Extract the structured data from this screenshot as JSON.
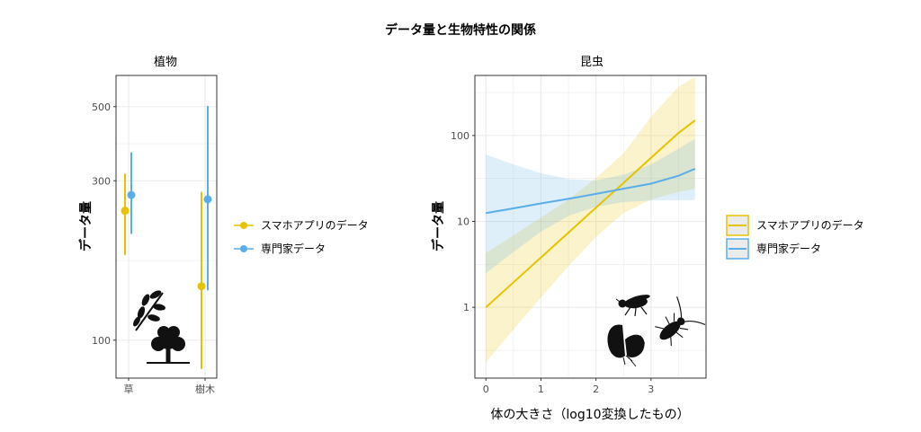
{
  "title": "データ量と生物特性の関係",
  "colors": {
    "smartphone": "#E6C300",
    "expert": "#5AAEE8",
    "grid": "#EBEBEB",
    "panel_border": "#333333",
    "silhouette": "#111111"
  },
  "icons": {
    "plants": [
      "leaf-sprig-icon",
      "tree-icon"
    ],
    "insects": [
      "fly-icon",
      "longhorn-beetle-icon",
      "butterfly-icon"
    ]
  },
  "chart_data": [
    {
      "type": "scatter",
      "panel": "植物",
      "ylabel": "データ量",
      "yscale": "log",
      "ylim": [
        77,
        620
      ],
      "yticks": [
        100,
        300,
        500
      ],
      "categories": [
        "草",
        "樹木"
      ],
      "grid": true,
      "legend_position": "right",
      "series": [
        {
          "name": "スマホアプリのデータ",
          "key": "smartphone",
          "values": [
            244,
            145
          ],
          "lower": [
            180,
            82
          ],
          "upper": [
            315,
            278
          ]
        },
        {
          "name": "専門家データ",
          "key": "expert",
          "values": [
            272,
            264
          ],
          "lower": [
            208,
            141
          ],
          "upper": [
            365,
            502
          ]
        }
      ]
    },
    {
      "type": "line",
      "panel": "昆虫",
      "ylabel": "データ量",
      "xlabel": "体の大きさ（log10変換したもの）",
      "yscale": "log",
      "ylim": [
        0.15,
        500
      ],
      "xlim": [
        -0.2,
        4.0
      ],
      "xticks": [
        0,
        1,
        2,
        3
      ],
      "yticks": [
        1,
        10,
        100
      ],
      "grid": true,
      "legend_position": "right",
      "series": [
        {
          "name": "スマホアプリのデータ",
          "key": "smartphone",
          "x": [
            0,
            0.5,
            1,
            1.5,
            2,
            2.5,
            3,
            3.5,
            3.8
          ],
          "y": [
            1.0,
            1.95,
            3.8,
            7.4,
            14.5,
            28,
            55,
            107,
            150
          ],
          "lower": [
            0.23,
            0.55,
            1.3,
            3.0,
            6.6,
            12.5,
            18,
            22,
            24
          ],
          "upper": [
            4.3,
            6.9,
            11.1,
            18,
            32,
            62,
            165,
            370,
            480
          ]
        },
        {
          "name": "専門家データ",
          "key": "expert",
          "x": [
            0,
            0.5,
            1,
            1.5,
            2,
            2.5,
            3,
            3.5,
            3.8
          ],
          "y": [
            12.5,
            14.2,
            16.2,
            18.3,
            20.9,
            24,
            27.5,
            34,
            41
          ],
          "lower": [
            2.5,
            4.4,
            7.6,
            11.6,
            14.8,
            16.8,
            17.5,
            17.6,
            17.8
          ],
          "upper": [
            60,
            46,
            36.5,
            31,
            30,
            35,
            46,
            70,
            92
          ]
        }
      ]
    }
  ]
}
